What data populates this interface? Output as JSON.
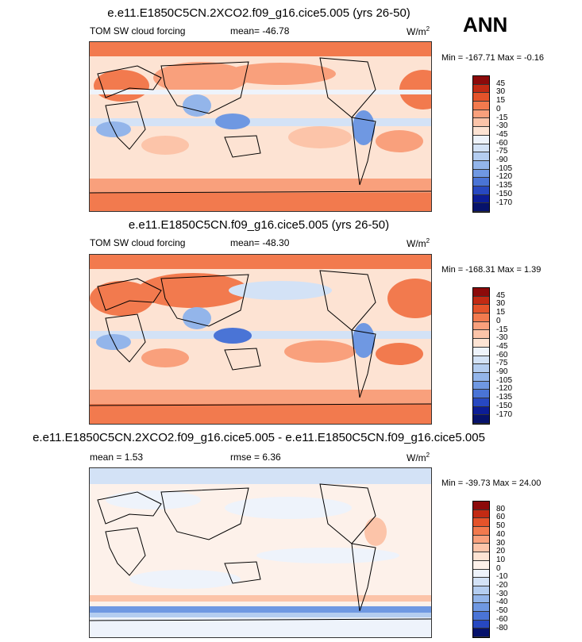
{
  "season_label": "ANN",
  "panels": [
    {
      "title": "e.e11.E1850C5CN.2XCO2.f09_g16.cice5.005 (yrs 26-50)",
      "left_label": "TOM SW cloud forcing",
      "center_label": "mean= -46.78",
      "units": "W/m",
      "units_sup": "2",
      "minmax": "Min = -167.71 Max =  -0.16",
      "colorbar": "abs"
    },
    {
      "title": "e.e11.E1850C5CN.f09_g16.cice5.005 (yrs 26-50)",
      "left_label": "TOM SW cloud forcing",
      "center_label": "mean= -48.30",
      "units": "W/m",
      "units_sup": "2",
      "minmax": "Min = -168.31 Max =   1.39",
      "colorbar": "abs"
    },
    {
      "title": "e.e11.E1850C5CN.2XCO2.f09_g16.cice5.005 - e.e11.E1850C5CN.f09_g16.cice5.005",
      "left_label": "mean =   1.53",
      "center_label": "rmse =   6.36",
      "units": "W/m",
      "units_sup": "2",
      "minmax": "Min = -39.73 Max =  24.00",
      "colorbar": "diff"
    }
  ],
  "chart_data": {
    "type": "heatmap",
    "colorbars": {
      "abs": {
        "levels": [
          "45",
          "30",
          "15",
          "0",
          "-15",
          "-30",
          "-45",
          "-60",
          "-75",
          "-90",
          "-105",
          "-120",
          "-135",
          "-150",
          "-170"
        ],
        "colors": [
          "#8c0a0a",
          "#c22a13",
          "#e4532a",
          "#f27a4e",
          "#f9a07c",
          "#fcc4a9",
          "#fde3d3",
          "#eef3fb",
          "#d3e2f6",
          "#b4cdf0",
          "#93b5ea",
          "#6f98e2",
          "#4a74d6",
          "#2748c1",
          "#0c1d96",
          "#06126b"
        ]
      },
      "diff": {
        "levels": [
          "80",
          "60",
          "50",
          "40",
          "30",
          "20",
          "10",
          "0",
          "-10",
          "-20",
          "-30",
          "-40",
          "-50",
          "-60",
          "-80"
        ],
        "colors": [
          "#8c0a0a",
          "#c22a13",
          "#e4532a",
          "#f27a4e",
          "#f9a07c",
          "#fcc4a9",
          "#fde3d3",
          "#fdf1ea",
          "#eef3fb",
          "#d3e2f6",
          "#b4cdf0",
          "#93b5ea",
          "#6f98e2",
          "#4a74d6",
          "#2748c1",
          "#06126b"
        ]
      }
    }
  }
}
